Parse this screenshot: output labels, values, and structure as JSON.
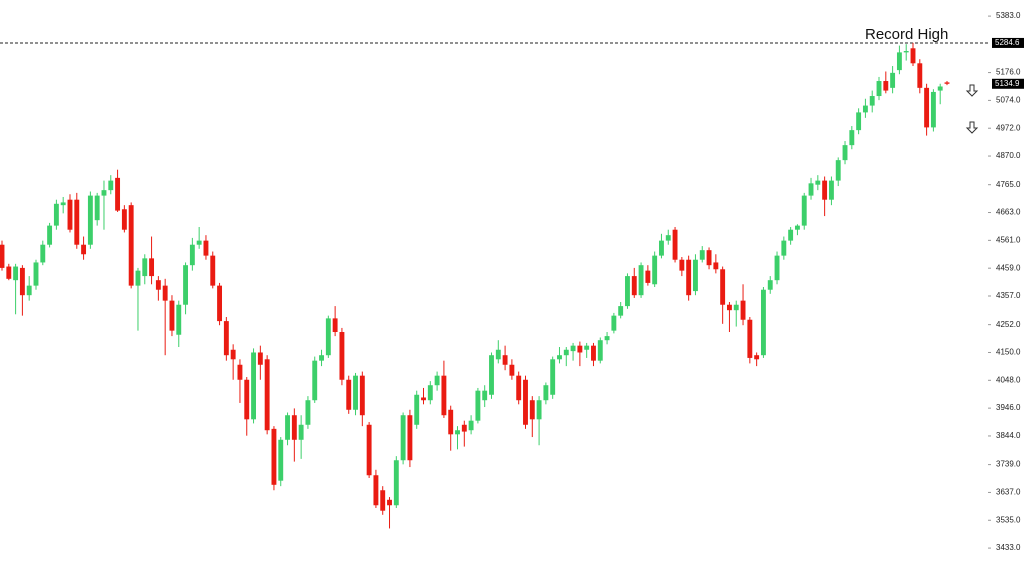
{
  "chart_data": {
    "type": "candlestick",
    "open": [
      4545,
      4465,
      4415,
      4460,
      4360,
      4395,
      4480,
      4545,
      4615,
      4690,
      4710,
      4710,
      4545,
      4545,
      4635,
      4725,
      4745,
      4790,
      4675,
      4690,
      4395,
      4430,
      4495,
      4415,
      4395,
      4340,
      4215,
      4325,
      4470,
      4545,
      4560,
      4505,
      4395,
      4265,
      4160,
      4105,
      4050,
      3905,
      4150,
      4125,
      3870,
      3680,
      3830,
      3920,
      3830,
      3885,
      3975,
      4120,
      4140,
      4275,
      4225,
      4050,
      3940,
      4065,
      3885,
      3700,
      3645,
      3610,
      3590,
      3755,
      3920,
      3885,
      3985,
      3975,
      4030,
      4065,
      3940,
      3850,
      3885,
      3865,
      3900,
      3975,
      3995,
      4125,
      4140,
      4105,
      4065,
      4050,
      3975,
      3905,
      3975,
      3995,
      4125,
      4140,
      4155,
      4175,
      4160,
      4175,
      4120,
      4195,
      4230,
      4285,
      4320,
      4430,
      4360,
      4450,
      4400,
      4505,
      4560,
      4600,
      4490,
      4490,
      4375,
      4490,
      4525,
      4480,
      4455,
      4325,
      4305,
      4340,
      4270,
      4140,
      4140,
      4380,
      4415,
      4505,
      4560,
      4600,
      4615,
      4725,
      4765,
      4780,
      4710,
      4780,
      4855,
      4910,
      4965,
      5030,
      5055,
      5090,
      5145,
      5120,
      5185,
      5250,
      5265,
      5210,
      5120,
      4975,
      5110,
      5140
    ],
    "high": [
      4560,
      4475,
      4475,
      4470,
      4430,
      4490,
      4560,
      4625,
      4710,
      4720,
      4730,
      4735,
      4575,
      4740,
      4735,
      4780,
      4800,
      4820,
      4690,
      4700,
      4460,
      4510,
      4575,
      4430,
      4420,
      4360,
      4340,
      4480,
      4570,
      4610,
      4580,
      4520,
      4405,
      4280,
      4180,
      4125,
      4060,
      4165,
      4175,
      4140,
      3880,
      3840,
      3930,
      3945,
      3920,
      3990,
      4135,
      4160,
      4285,
      4320,
      4240,
      4065,
      4075,
      4080,
      3895,
      3720,
      3660,
      3620,
      3770,
      3930,
      3940,
      4010,
      4020,
      4045,
      4080,
      4120,
      3955,
      3880,
      3900,
      3920,
      4020,
      4030,
      4150,
      4195,
      4175,
      4125,
      4080,
      4065,
      3990,
      3990,
      4040,
      4135,
      4170,
      4170,
      4185,
      4190,
      4185,
      4185,
      4205,
      4225,
      4295,
      4335,
      4440,
      4460,
      4480,
      4470,
      4520,
      4585,
      4600,
      4610,
      4500,
      4505,
      4510,
      4540,
      4535,
      4510,
      4465,
      4335,
      4340,
      4400,
      4280,
      4150,
      4390,
      4430,
      4520,
      4575,
      4610,
      4620,
      4735,
      4790,
      4800,
      4795,
      4795,
      4865,
      4925,
      4980,
      5045,
      5080,
      5110,
      5160,
      5180,
      5200,
      5275,
      5280,
      5285,
      5225,
      5135,
      5115,
      5135,
      5145
    ],
    "low": [
      4450,
      4415,
      4290,
      4285,
      4340,
      4380,
      4470,
      4535,
      4600,
      4660,
      4590,
      4530,
      4490,
      4530,
      4615,
      4600,
      4730,
      4665,
      4590,
      4385,
      4230,
      4400,
      4400,
      4340,
      4140,
      4210,
      4170,
      4290,
      4450,
      4530,
      4490,
      4385,
      4250,
      4120,
      4050,
      3965,
      3845,
      3890,
      4050,
      3850,
      3645,
      3660,
      3810,
      3750,
      3760,
      3870,
      3965,
      4100,
      4130,
      4210,
      4030,
      3925,
      3920,
      3880,
      3690,
      3580,
      3555,
      3505,
      3580,
      3740,
      3730,
      3870,
      3960,
      3960,
      4010,
      3910,
      3790,
      3795,
      3805,
      3850,
      3890,
      3950,
      3980,
      4110,
      4085,
      4050,
      3960,
      3870,
      3840,
      3810,
      3960,
      3980,
      4110,
      4100,
      4120,
      4100,
      4130,
      4100,
      4110,
      4180,
      4220,
      4275,
      4310,
      4350,
      4350,
      4395,
      4390,
      4495,
      4545,
      4480,
      4430,
      4340,
      4360,
      4480,
      4455,
      4440,
      4255,
      4225,
      4245,
      4250,
      4110,
      4100,
      4130,
      4365,
      4400,
      4490,
      4545,
      4580,
      4600,
      4710,
      4745,
      4650,
      4690,
      4760,
      4840,
      4895,
      4950,
      5010,
      5030,
      5075,
      5100,
      5100,
      5170,
      5220,
      5200,
      5100,
      4945,
      4960,
      5060,
      5130
    ],
    "close": [
      4460,
      4420,
      4465,
      4360,
      4395,
      4480,
      4545,
      4615,
      4695,
      4700,
      4600,
      4545,
      4510,
      4725,
      4725,
      4745,
      4780,
      4670,
      4600,
      4395,
      4450,
      4495,
      4430,
      4380,
      4340,
      4230,
      4325,
      4470,
      4545,
      4560,
      4505,
      4395,
      4265,
      4140,
      4125,
      4050,
      3905,
      4150,
      4105,
      3865,
      3665,
      3830,
      3920,
      3830,
      3885,
      3975,
      4120,
      4140,
      4275,
      4225,
      4050,
      3940,
      4065,
      3920,
      3700,
      3590,
      3570,
      3590,
      3755,
      3920,
      3755,
      3995,
      3975,
      4030,
      4065,
      3920,
      3850,
      3865,
      3860,
      3900,
      4010,
      4010,
      4140,
      4160,
      4105,
      4065,
      3975,
      3885,
      3905,
      3975,
      4030,
      4125,
      4140,
      4160,
      4175,
      4150,
      4175,
      4120,
      4195,
      4210,
      4285,
      4320,
      4430,
      4360,
      4470,
      4405,
      4505,
      4560,
      4580,
      4490,
      4450,
      4360,
      4490,
      4525,
      4470,
      4455,
      4325,
      4305,
      4325,
      4270,
      4130,
      4125,
      4380,
      4415,
      4505,
      4560,
      4600,
      4615,
      4725,
      4770,
      4780,
      4710,
      4780,
      4855,
      4910,
      4965,
      5030,
      5055,
      5090,
      5145,
      5110,
      5175,
      5250,
      5255,
      5210,
      5120,
      4975,
      5105,
      5125,
      5134.9
    ],
    "up_color": "#3ccf6a",
    "down_color": "#ea1b12",
    "ylim": [
      3382,
      5442
    ],
    "yticks": [
      {
        "value": 5383,
        "label": "5383.0"
      },
      {
        "value": 5176,
        "label": "5176.0"
      },
      {
        "value": 5074,
        "label": "5074.0"
      },
      {
        "value": 4972,
        "label": "4972.0"
      },
      {
        "value": 4870,
        "label": "4870.0"
      },
      {
        "value": 4765,
        "label": "4765.0"
      },
      {
        "value": 4663,
        "label": "4663.0"
      },
      {
        "value": 4561,
        "label": "4561.0"
      },
      {
        "value": 4459,
        "label": "4459.0"
      },
      {
        "value": 4357,
        "label": "4357.0"
      },
      {
        "value": 4252,
        "label": "4252.0"
      },
      {
        "value": 4150,
        "label": "4150.0"
      },
      {
        "value": 4048,
        "label": "4048.0"
      },
      {
        "value": 3946,
        "label": "3946.0"
      },
      {
        "value": 3844,
        "label": "3844.0"
      },
      {
        "value": 3739,
        "label": "3739.0"
      },
      {
        "value": 3637,
        "label": "3637.0"
      },
      {
        "value": 3535,
        "label": "3535.0"
      },
      {
        "value": 3433,
        "label": "3433.0"
      }
    ],
    "annotations": [
      {
        "text": "Record High",
        "value": 5284.6
      }
    ]
  }
}
